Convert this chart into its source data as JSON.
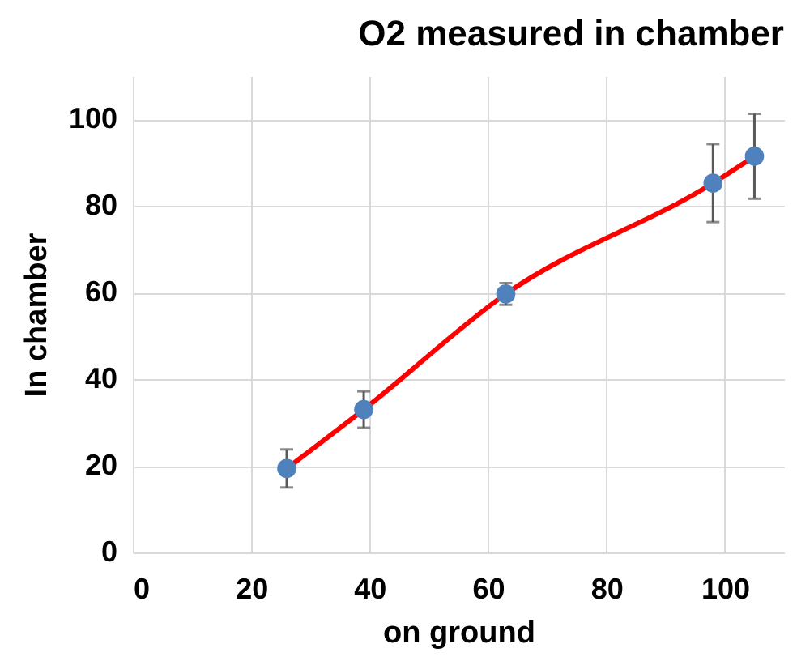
{
  "chart_data": {
    "type": "scatter",
    "title": "O2 measured in chamber",
    "xlabel": "on ground",
    "ylabel": "In chamber",
    "xlim": [
      0,
      110
    ],
    "xticks": [
      0,
      20,
      40,
      60,
      80,
      100
    ],
    "ylim": [
      0,
      110
    ],
    "yticks": [
      0,
      20,
      40,
      60,
      80,
      100
    ],
    "grid": true,
    "series": [
      {
        "type": "line",
        "color": "#ff0000",
        "line_style": "solid",
        "x": [
          26,
          39,
          63,
          98,
          105
        ],
        "values": [
          19.4,
          33,
          59.7,
          85.3,
          91.5
        ]
      },
      {
        "color": "#4f81bd",
        "marker": "circle",
        "x": [
          26,
          39,
          63,
          98,
          105
        ],
        "values": [
          19.4,
          33,
          59.7,
          85.3,
          91.5
        ],
        "errors": [
          4.4,
          4.2,
          2.5,
          9,
          9.8
        ]
      }
    ]
  }
}
